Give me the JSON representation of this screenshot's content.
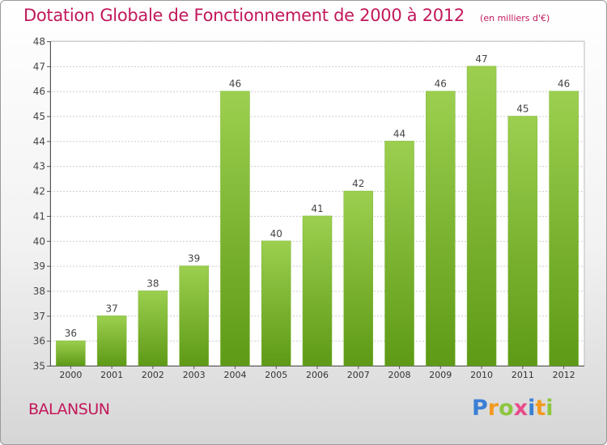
{
  "title": "Dotation Globale de Fonctionnement de 2000 à 2012",
  "subtitle": "(en milliers d'€)",
  "commune": "BALANSUN",
  "logo": {
    "text": "Proxiti",
    "letters": [
      {
        "ch": "P",
        "color": "#3a7fd5"
      },
      {
        "ch": "r",
        "color": "#f29a1f"
      },
      {
        "ch": "o",
        "color": "#8cc63f"
      },
      {
        "ch": "x",
        "color": "#e84c8a"
      },
      {
        "ch": "i",
        "color": "#3a7fd5"
      },
      {
        "ch": "t",
        "color": "#f29a1f"
      },
      {
        "ch": "i",
        "color": "#8cc63f"
      }
    ]
  },
  "colors": {
    "bar_light": "#9ccf4f",
    "bar_dark": "#5e9a16",
    "title": "#c2185b",
    "grid": "#cccccc",
    "axis": "#555555"
  },
  "chart_data": {
    "type": "bar",
    "title": "Dotation Globale de Fonctionnement de 2000 à 2012",
    "subtitle": "(en milliers d'€)",
    "categories": [
      "2000",
      "2001",
      "2002",
      "2003",
      "2004",
      "2005",
      "2006",
      "2007",
      "2008",
      "2009",
      "2010",
      "2011",
      "2012"
    ],
    "values": [
      36,
      37,
      38,
      39,
      46,
      40,
      41,
      42,
      44,
      46,
      47,
      45,
      46
    ],
    "ylim": [
      35,
      48
    ],
    "yticks": [
      35,
      36,
      37,
      38,
      39,
      40,
      41,
      42,
      43,
      44,
      45,
      46,
      47,
      48
    ],
    "grid": true,
    "data_labels": true
  }
}
